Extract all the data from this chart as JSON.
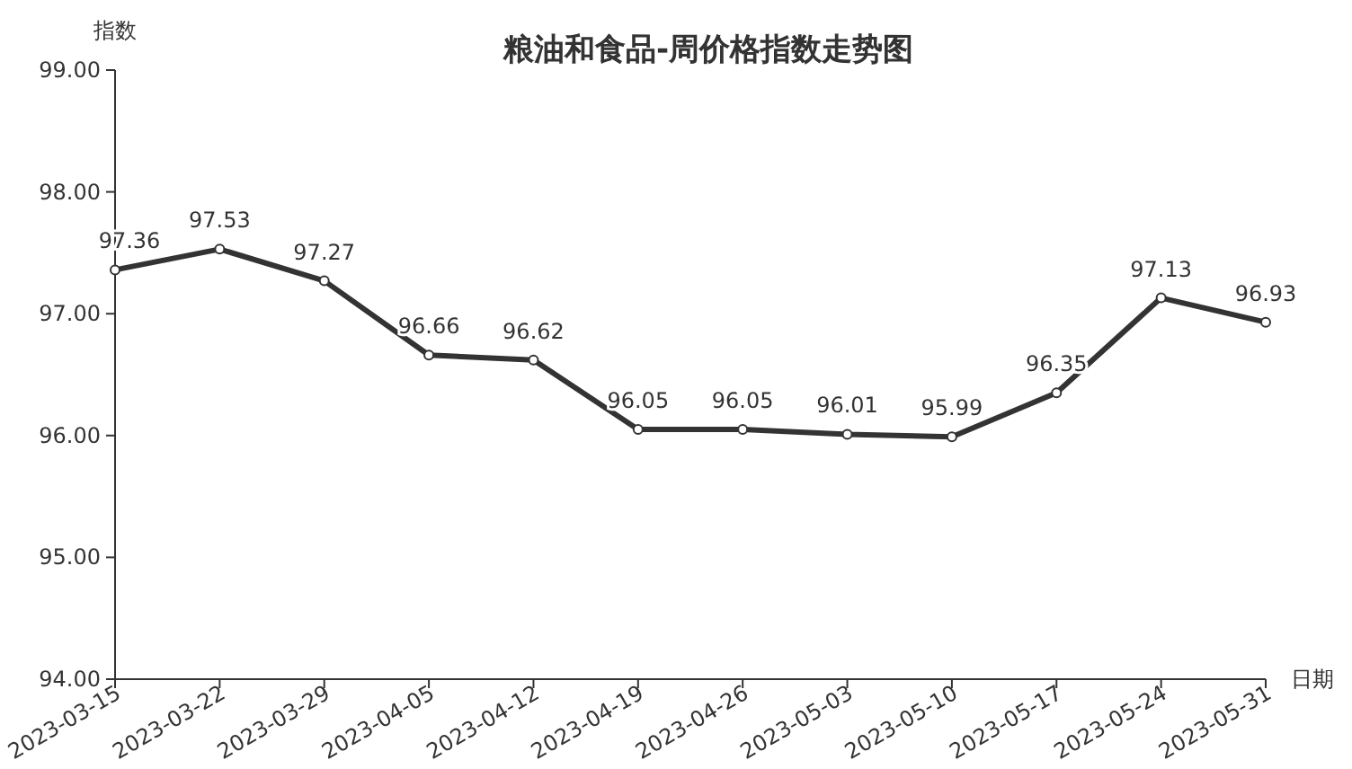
{
  "chart_data": {
    "type": "line",
    "title": "粮油和食品-周价格指数走势图",
    "ylabel": "指数",
    "xlabel": "日期",
    "categories": [
      "2023-03-15",
      "2023-03-22",
      "2023-03-29",
      "2023-04-05",
      "2023-04-12",
      "2023-04-19",
      "2023-04-26",
      "2023-05-03",
      "2023-05-10",
      "2023-05-17",
      "2023-05-24",
      "2023-05-31"
    ],
    "series": [
      {
        "color": "#333333",
        "values": [
          97.36,
          97.53,
          97.27,
          96.66,
          96.62,
          96.05,
          96.05,
          96.01,
          95.99,
          96.35,
          97.13,
          96.93
        ]
      }
    ],
    "ylim": [
      94,
      99
    ],
    "yticks": [
      {
        "value": 94,
        "label": "94.00"
      },
      {
        "value": 95,
        "label": "95.00"
      },
      {
        "value": 96,
        "label": "96.00"
      },
      {
        "value": 97,
        "label": "97.00"
      },
      {
        "value": 98,
        "label": "98.00"
      },
      {
        "value": 99,
        "label": "99.00"
      }
    ],
    "data_labels": true,
    "marker": "circle",
    "line_style": "solid",
    "grid": false
  }
}
